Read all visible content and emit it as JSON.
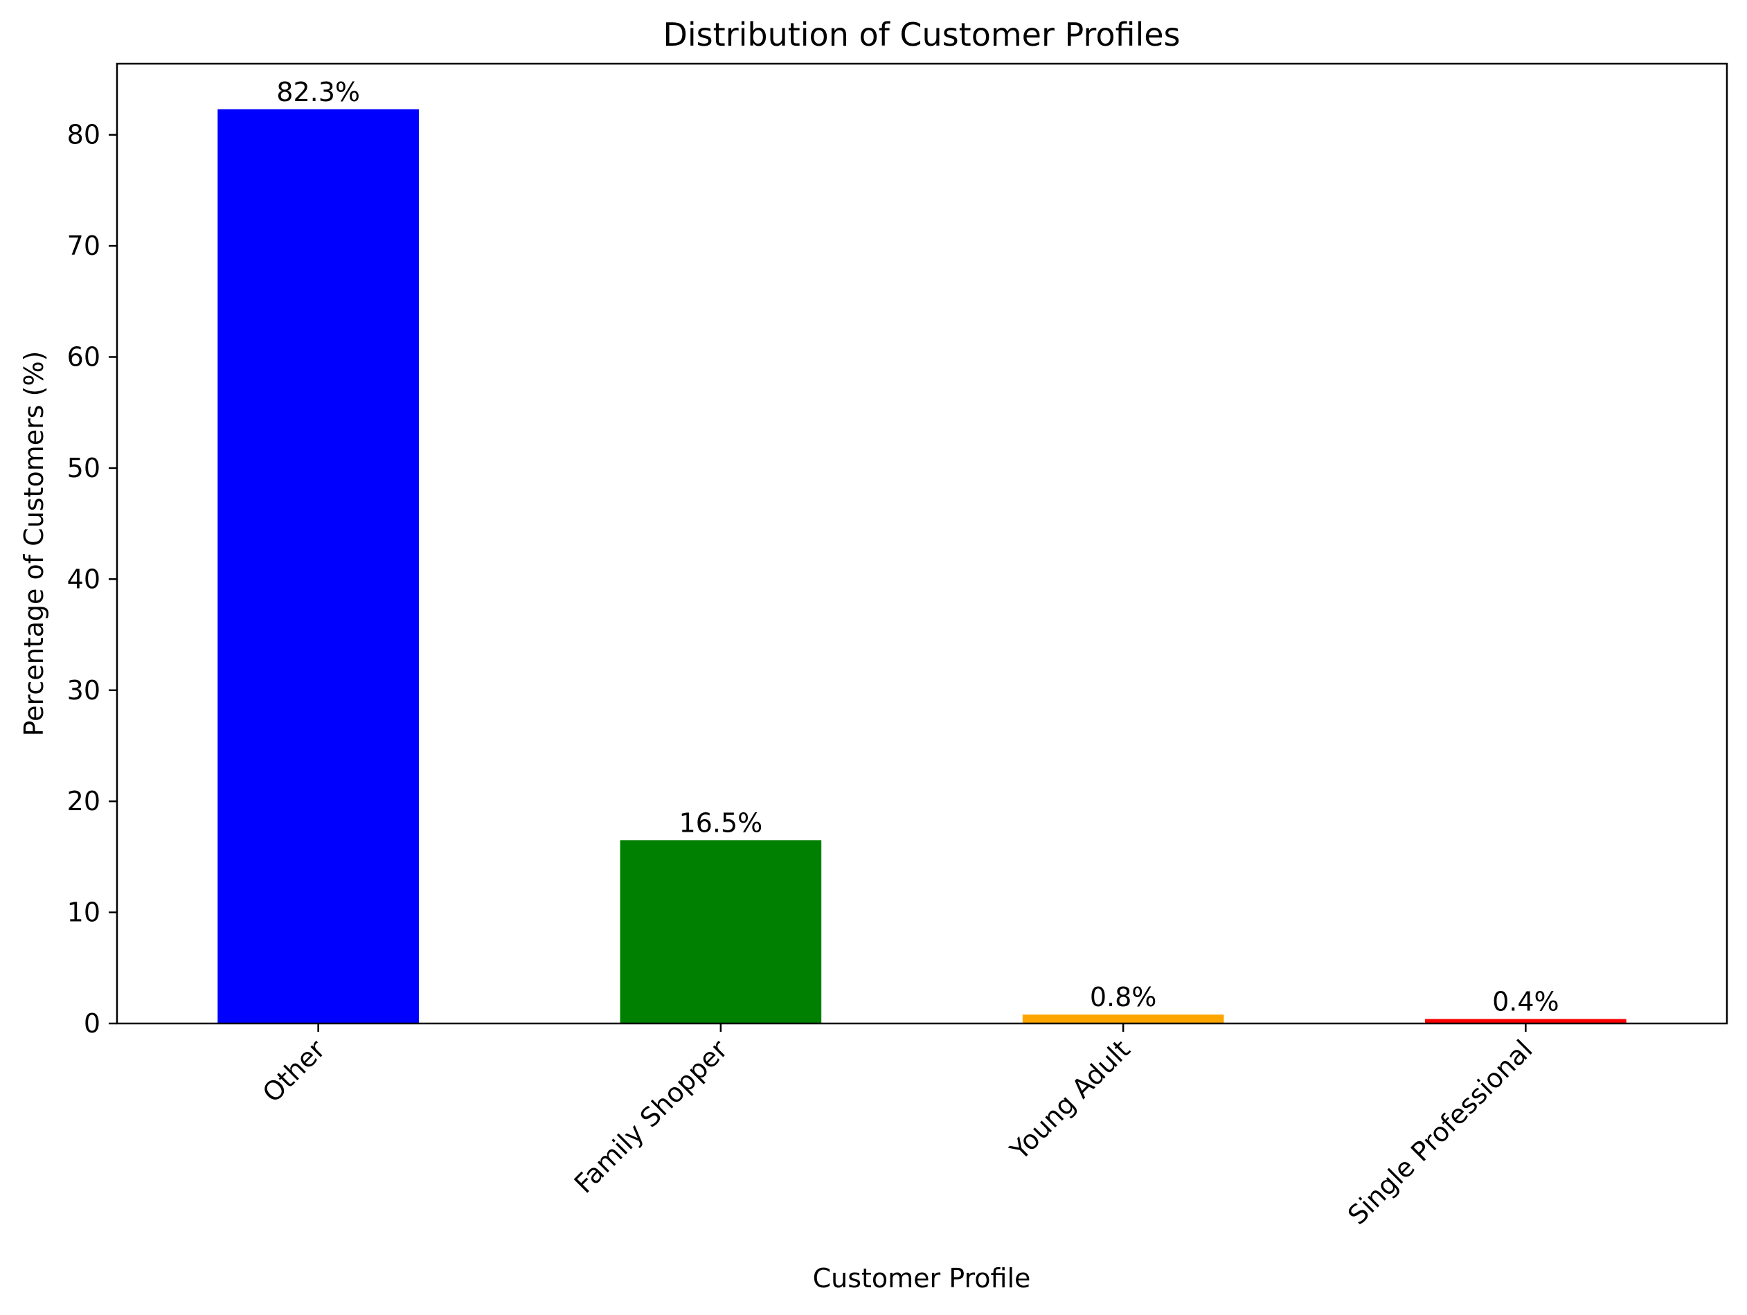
{
  "chart_data": {
    "type": "bar",
    "title": "Distribution of Customer Profiles",
    "xlabel": "Customer Profile",
    "ylabel": "Percentage of Customers (%)",
    "categories": [
      "Other",
      "Family Shopper",
      "Young Adult",
      "Single Professional"
    ],
    "values": [
      82.3,
      16.5,
      0.8,
      0.4
    ],
    "data_labels": [
      "82.3%",
      "16.5%",
      "0.8%",
      "0.4%"
    ],
    "colors": [
      "#0000ff",
      "#008000",
      "#ffa500",
      "#ff0000"
    ],
    "ylim": [
      0,
      86.4
    ],
    "yticks": [
      0,
      10,
      20,
      30,
      40,
      50,
      60,
      70,
      80
    ],
    "ytick_labels": [
      "0",
      "10",
      "20",
      "30",
      "40",
      "50",
      "60",
      "70",
      "80"
    ],
    "grid": false,
    "legend": "none",
    "xtick_rotation": 45
  }
}
